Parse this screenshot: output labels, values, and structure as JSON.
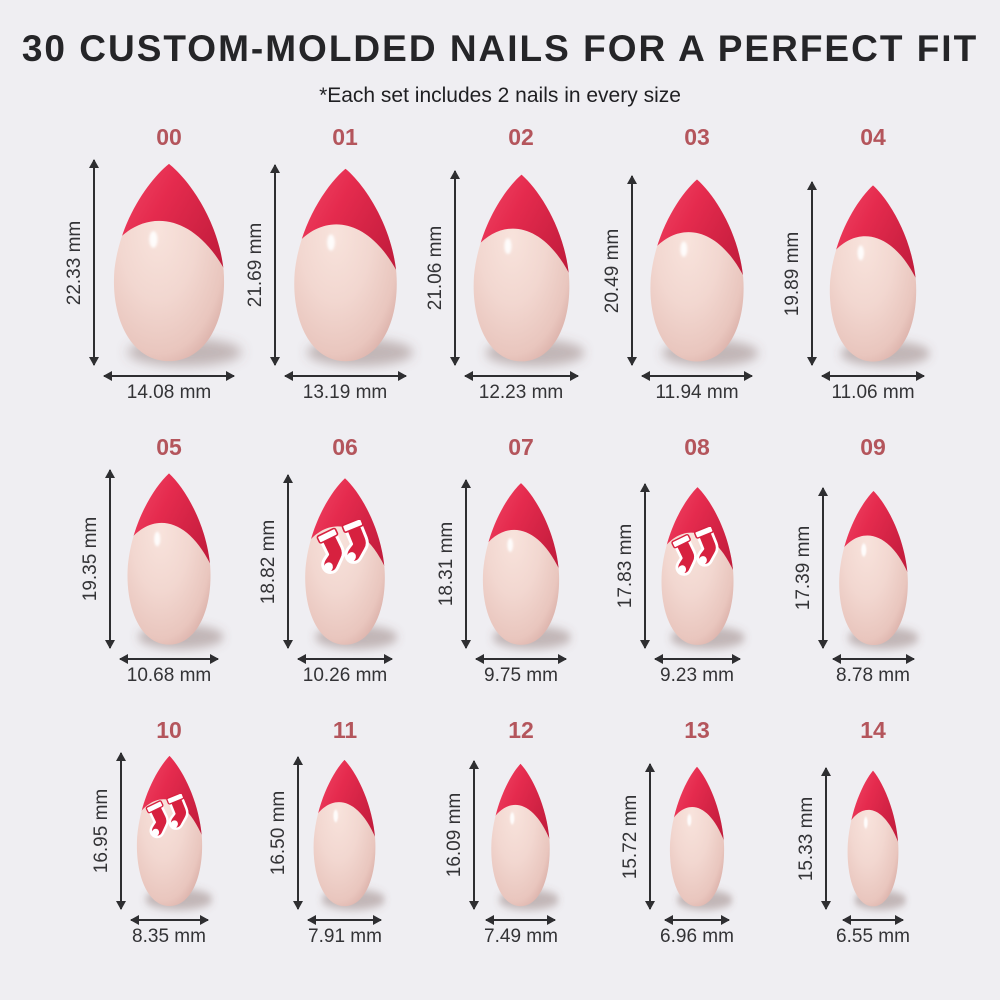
{
  "title": "30 CUSTOM-MOLDED NAILS FOR A PERFECT FIT",
  "subtitle": "*Each set includes 2 nails in every size",
  "unit": "mm",
  "colors": {
    "background": "#efeef2",
    "title_text": "#252528",
    "size_number": "#b4555c",
    "measure_text": "#333336",
    "arrow": "#2e2e31",
    "tip_red_light": "#f4506e",
    "tip_red": "#e52b4e",
    "tip_red_dark": "#c01b3b",
    "nail_body_light": "#f8e3dc",
    "nail_body": "#f2d7d0",
    "nail_body_edge": "#d6a9a2",
    "decal_red": "#d7213f"
  },
  "sizes": [
    {
      "label": "00",
      "height_mm": 22.33,
      "width_mm": 14.08,
      "height_text": "22.33 mm",
      "width_text": "14.08 mm",
      "decal": "none"
    },
    {
      "label": "01",
      "height_mm": 21.69,
      "width_mm": 13.19,
      "height_text": "21.69 mm",
      "width_text": "13.19 mm",
      "decal": "none"
    },
    {
      "label": "02",
      "height_mm": 21.06,
      "width_mm": 12.23,
      "height_text": "21.06 mm",
      "width_text": "12.23 mm",
      "decal": "none"
    },
    {
      "label": "03",
      "height_mm": 20.49,
      "width_mm": 11.94,
      "height_text": "20.49 mm",
      "width_text": "11.94 mm",
      "decal": "none"
    },
    {
      "label": "04",
      "height_mm": 19.89,
      "width_mm": 11.06,
      "height_text": "19.89 mm",
      "width_text": "11.06 mm",
      "decal": "none"
    },
    {
      "label": "05",
      "height_mm": 19.35,
      "width_mm": 10.68,
      "height_text": "19.35 mm",
      "width_text": "10.68 mm",
      "decal": "none"
    },
    {
      "label": "06",
      "height_mm": 18.82,
      "width_mm": 10.26,
      "height_text": "18.82 mm",
      "width_text": "10.26 mm",
      "decal": "red-socks"
    },
    {
      "label": "07",
      "height_mm": 18.31,
      "width_mm": 9.75,
      "height_text": "18.31 mm",
      "width_text": "9.75 mm",
      "decal": "none"
    },
    {
      "label": "08",
      "height_mm": 17.83,
      "width_mm": 9.23,
      "height_text": "17.83 mm",
      "width_text": "9.23 mm",
      "decal": "red-socks"
    },
    {
      "label": "09",
      "height_mm": 17.39,
      "width_mm": 8.78,
      "height_text": "17.39 mm",
      "width_text": "8.78 mm",
      "decal": "none"
    },
    {
      "label": "10",
      "height_mm": 16.95,
      "width_mm": 8.35,
      "height_text": "16.95 mm",
      "width_text": "8.35 mm",
      "decal": "red-socks"
    },
    {
      "label": "11",
      "height_mm": 16.5,
      "width_mm": 7.91,
      "height_text": "16.50 mm",
      "width_text": "7.91 mm",
      "decal": "none"
    },
    {
      "label": "12",
      "height_mm": 16.09,
      "width_mm": 7.49,
      "height_text": "16.09 mm",
      "width_text": "7.49 mm",
      "decal": "none"
    },
    {
      "label": "13",
      "height_mm": 15.72,
      "width_mm": 6.96,
      "height_text": "15.72 mm",
      "width_text": "6.96 mm",
      "decal": "none"
    },
    {
      "label": "14",
      "height_mm": 15.33,
      "width_mm": 6.55,
      "height_text": "15.33 mm",
      "width_text": "6.55 mm",
      "decal": "none"
    }
  ],
  "rows": [
    [
      "00",
      "01",
      "02",
      "03",
      "04"
    ],
    [
      "05",
      "06",
      "07",
      "08",
      "09"
    ],
    [
      "10",
      "11",
      "12",
      "13",
      "14"
    ]
  ]
}
